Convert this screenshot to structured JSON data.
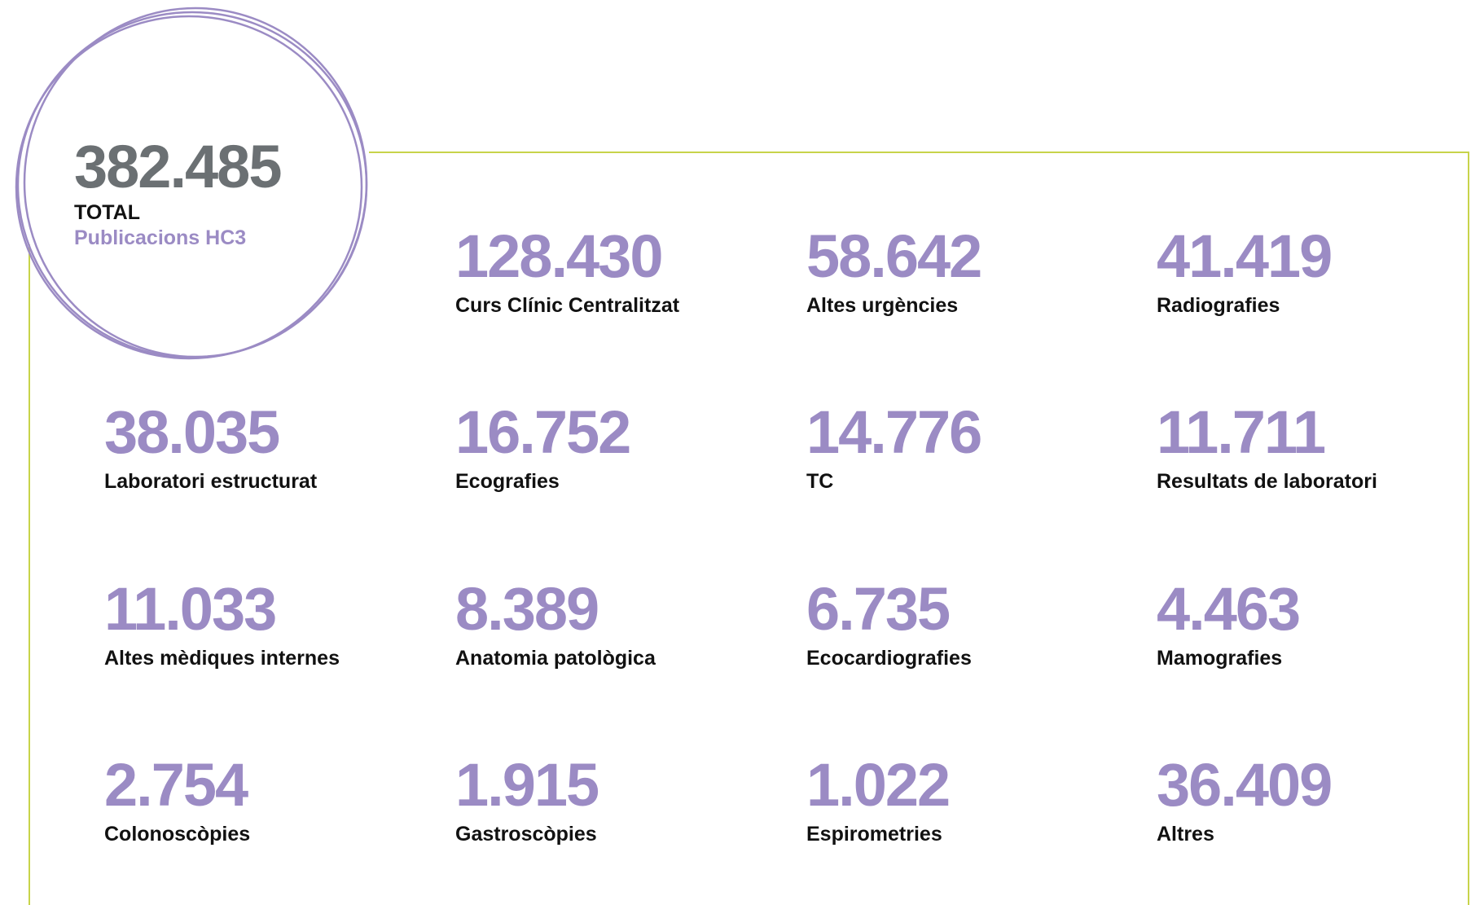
{
  "total": {
    "value": "382.485",
    "label": "TOTAL",
    "sublabel": "Publicacions HC3"
  },
  "items": [
    {
      "value": "128.430",
      "label": "Curs Clínic Centralitzat"
    },
    {
      "value": "58.642",
      "label": "Altes urgències"
    },
    {
      "value": "41.419",
      "label": "Radiografies"
    },
    {
      "value": "38.035",
      "label": "Laboratori estructurat"
    },
    {
      "value": "16.752",
      "label": "Ecografies"
    },
    {
      "value": "14.776",
      "label": "TC"
    },
    {
      "value": "11.711",
      "label": "Resultats de laboratori"
    },
    {
      "value": "11.033",
      "label": "Altes mèdiques internes"
    },
    {
      "value": "8.389",
      "label": "Anatomia patològica"
    },
    {
      "value": "6.735",
      "label": "Ecocardiografies"
    },
    {
      "value": "4.463",
      "label": "Mamografies"
    },
    {
      "value": "2.754",
      "label": "Colonoscòpies"
    },
    {
      "value": "1.915",
      "label": "Gastroscòpies"
    },
    {
      "value": "1.022",
      "label": "Espirometries"
    },
    {
      "value": "36.409",
      "label": "Altres"
    }
  ]
}
